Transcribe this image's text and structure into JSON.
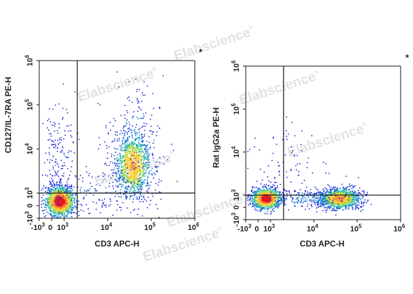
{
  "watermark": {
    "text": "Elabscience",
    "mark": "®"
  },
  "chart_data": [
    {
      "type": "scatter",
      "style": "pseudocolor density dot plot",
      "xlabel": "CD3 APC-H",
      "ylabel": "CD127/IL-7RA PE-H",
      "scale": "biexponential (logicle)",
      "xlim": [
        -1000,
        1000000
      ],
      "ylim": [
        -1000,
        1000000
      ],
      "tick_labels": [
        {
          "base": "-10",
          "exp": "3",
          "value": -1000
        },
        {
          "base": "0",
          "exp": "",
          "value": 0
        },
        {
          "base": "10",
          "exp": "3",
          "value": 1000
        },
        {
          "base": "10",
          "exp": "4",
          "value": 10000
        },
        {
          "base": "10",
          "exp": "5",
          "value": 100000
        },
        {
          "base": "10",
          "exp": "6",
          "value": 1000000
        }
      ],
      "quadrant_gate": {
        "x": 2000,
        "y": 1000
      },
      "marker": "*",
      "populations": [
        {
          "x": 500,
          "y": 300,
          "density": "high"
        },
        {
          "x": 18000,
          "y": 2500,
          "density": "medium"
        }
      ],
      "grid": false
    },
    {
      "type": "scatter",
      "style": "pseudocolor density dot plot",
      "xlabel": "CD3 APC-H",
      "ylabel": "Rat IgG2a PE-H",
      "scale": "biexponential (logicle)",
      "xlim": [
        -1000,
        1000000
      ],
      "ylim": [
        -1000,
        1000000
      ],
      "tick_labels": [
        {
          "base": "-10",
          "exp": "3",
          "value": -1000
        },
        {
          "base": "0",
          "exp": "",
          "value": 0
        },
        {
          "base": "10",
          "exp": "3",
          "value": 1000
        },
        {
          "base": "10",
          "exp": "4",
          "value": 10000
        },
        {
          "base": "10",
          "exp": "5",
          "value": 100000
        },
        {
          "base": "10",
          "exp": "6",
          "value": 1000000
        }
      ],
      "quadrant_gate": {
        "x": 2000,
        "y": 1000
      },
      "marker": "*",
      "populations": [
        {
          "x": 500,
          "y": 150,
          "density": "high"
        },
        {
          "x": 18000,
          "y": 150,
          "density": "medium"
        }
      ],
      "grid": false
    }
  ]
}
